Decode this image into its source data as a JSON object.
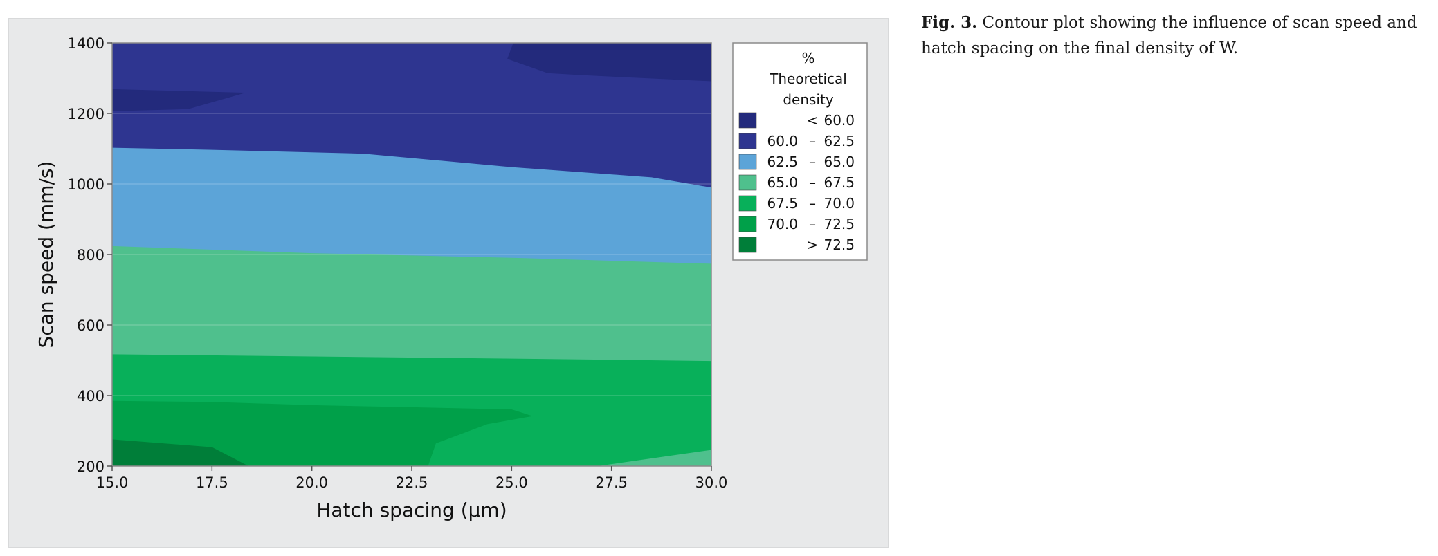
{
  "caption": {
    "label": "Fig. 3.",
    "text": "Contour plot showing the influence of scan speed and hatch spacing on the final density of W."
  },
  "chart_data": {
    "type": "contour",
    "xlabel": "Hatch spacing (µm)",
    "ylabel": "Scan speed (mm/s)",
    "xlim": [
      15.0,
      30.0
    ],
    "ylim": [
      200,
      1400
    ],
    "xticks": [
      "15.0",
      "17.5",
      "20.0",
      "22.5",
      "25.0",
      "27.5",
      "30.0"
    ],
    "yticks": [
      "200",
      "400",
      "600",
      "800",
      "1000",
      "1200",
      "1400"
    ],
    "grid": "horizontal",
    "legend": {
      "title": [
        "%",
        "Theoretical",
        "density"
      ],
      "placement": "right",
      "entries": [
        {
          "symbol": "<",
          "low": "",
          "high": "60.0",
          "color": "#232a7c"
        },
        {
          "symbol": "",
          "low": "60.0",
          "high": "62.5",
          "color": "#2e3590"
        },
        {
          "symbol": "",
          "low": "62.5",
          "high": "65.0",
          "color": "#5ca4d8"
        },
        {
          "symbol": "",
          "low": "65.0",
          "high": "67.5",
          "color": "#4fc08d"
        },
        {
          "symbol": "",
          "low": "67.5",
          "high": "70.0",
          "color": "#08b05a"
        },
        {
          "symbol": "",
          "low": "70.0",
          "high": "72.5",
          "color": "#00a049"
        },
        {
          "symbol": ">",
          "low": "",
          "high": "72.5",
          "color": "#007e39"
        }
      ]
    },
    "regions": [
      {
        "level": "60.0 – 62.5",
        "color": "#2e3590",
        "points": [
          [
            15,
            1400
          ],
          [
            30,
            1400
          ],
          [
            30,
            200
          ],
          [
            15,
            200
          ]
        ]
      },
      {
        "level": "< 60.0",
        "color": "#232a7c",
        "points": [
          [
            15,
            1268
          ],
          [
            18.3,
            1258
          ],
          [
            16.9,
            1213
          ],
          [
            15,
            1207
          ]
        ]
      },
      {
        "level": "< 60.0",
        "color": "#232a7c",
        "points": [
          [
            25.05,
            1400
          ],
          [
            30,
            1400
          ],
          [
            30,
            1292
          ],
          [
            26.8,
            1309
          ],
          [
            25.9,
            1315
          ],
          [
            24.9,
            1355
          ]
        ]
      },
      {
        "level": "62.5 – 65.0",
        "color": "#5ca4d8",
        "points": [
          [
            15,
            1102
          ],
          [
            17.5,
            1096
          ],
          [
            21.3,
            1085
          ],
          [
            25,
            1047
          ],
          [
            28.5,
            1018
          ],
          [
            30,
            989
          ],
          [
            30,
            200
          ],
          [
            15,
            200
          ]
        ]
      },
      {
        "level": "65.0 – 67.5",
        "color": "#4fc08d",
        "points": [
          [
            15,
            823
          ],
          [
            20,
            803
          ],
          [
            25,
            790
          ],
          [
            30,
            773
          ],
          [
            30,
            200
          ],
          [
            15,
            200
          ]
        ]
      },
      {
        "level": "67.5 – 70.0",
        "color": "#08b05a",
        "points": [
          [
            15,
            516
          ],
          [
            20,
            510
          ],
          [
            25,
            504
          ],
          [
            30,
            497
          ],
          [
            30,
            200
          ],
          [
            15,
            200
          ]
        ]
      },
      {
        "level": "70.0 – 72.5",
        "color": "#00a049",
        "points": [
          [
            15,
            384
          ],
          [
            17.5,
            381
          ],
          [
            20,
            372
          ],
          [
            22.5,
            366
          ],
          [
            25,
            360
          ],
          [
            25.5,
            342
          ],
          [
            24.4,
            320
          ],
          [
            23.1,
            265
          ],
          [
            22.9,
            200
          ],
          [
            15,
            200
          ]
        ]
      },
      {
        "level": "> 72.5",
        "color": "#007e39",
        "points": [
          [
            15,
            275
          ],
          [
            17.5,
            253
          ],
          [
            18.4,
            200
          ],
          [
            15,
            200
          ]
        ]
      },
      {
        "level": "65.0 – 67.5",
        "color": "#4fc08d",
        "points": [
          [
            27.2,
            200
          ],
          [
            30,
            245
          ],
          [
            30,
            200
          ]
        ]
      }
    ]
  }
}
